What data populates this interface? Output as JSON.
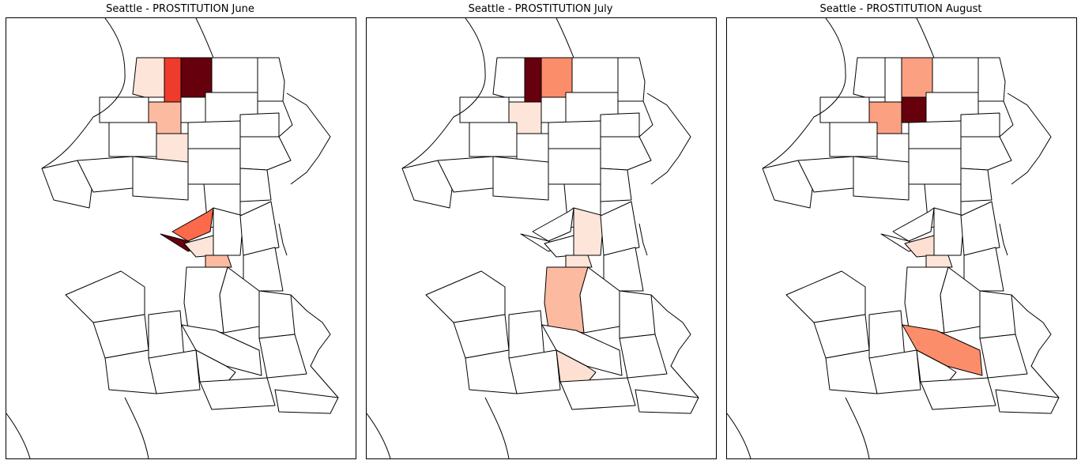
{
  "panels": [
    {
      "title": "Seattle - PROSTITUTION June",
      "month": "June",
      "highlights": [
        {
          "district": "north-west-a",
          "color": "#fee5d9"
        },
        {
          "district": "north-west-b",
          "color": "#ef3b2c"
        },
        {
          "district": "north-central-a",
          "color": "#67000d"
        },
        {
          "district": "north-central-b",
          "color": "#fcbba1"
        },
        {
          "district": "north-central-c",
          "color": "#d62728"
        },
        {
          "district": "north-central-d",
          "color": "#fee5d9"
        },
        {
          "district": "downtown-a",
          "color": "#fb6a4a"
        },
        {
          "district": "downtown-b",
          "color": "#67000d"
        },
        {
          "district": "downtown-c",
          "color": "#fee5d9"
        },
        {
          "district": "downtown-d",
          "color": "#fcbba1"
        }
      ]
    },
    {
      "title": "Seattle - PROSTITUTION July",
      "month": "July",
      "highlights": [
        {
          "district": "north-west-b",
          "color": "#67000d"
        },
        {
          "district": "north-central-a",
          "color": "#fc8d6b"
        },
        {
          "district": "north-central-c",
          "color": "#fc8d6b"
        },
        {
          "district": "north-central-b",
          "color": "#fee5d9"
        },
        {
          "district": "central-east-a",
          "color": "#fee5d9"
        },
        {
          "district": "south-central-a",
          "color": "#fcbba1"
        },
        {
          "district": "south-south-a",
          "color": "#fee0d2"
        },
        {
          "district": "downtown-d",
          "color": "#fee5d9"
        }
      ]
    },
    {
      "title": "Seattle - PROSTITUTION August",
      "month": "August",
      "highlights": [
        {
          "district": "north-central-a",
          "color": "#fca082"
        },
        {
          "district": "north-central-b",
          "color": "#fca082"
        },
        {
          "district": "north-central-e",
          "color": "#67000d"
        },
        {
          "district": "downtown-c",
          "color": "#fee0d2"
        },
        {
          "district": "downtown-d",
          "color": "#fee5d9"
        },
        {
          "district": "south-east-a",
          "color": "#fc8d6b"
        }
      ]
    }
  ]
}
